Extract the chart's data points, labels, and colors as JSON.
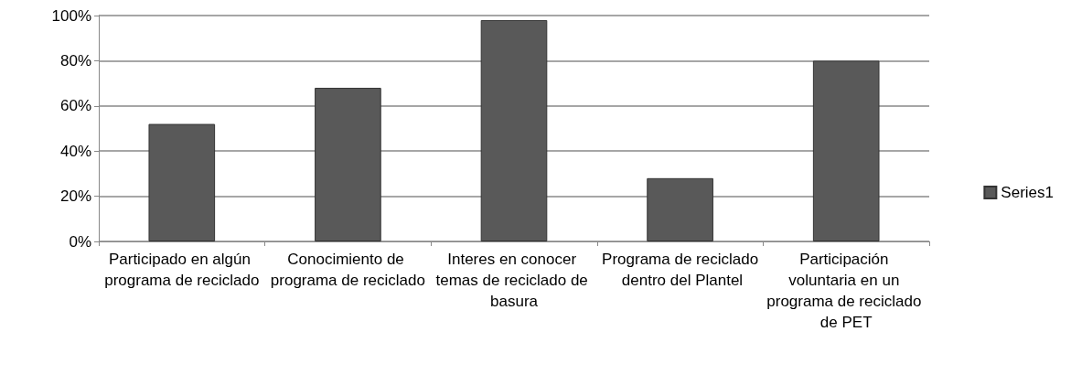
{
  "chart_data": {
    "type": "bar",
    "categories": [
      "Participado en algún programa de reciclado",
      "Conocimiento de programa de reciclado",
      "Interes en conocer temas de reciclado de basura",
      "Programa de reciclado dentro del Plantel",
      "Participación voluntaria en un programa de reciclado de PET"
    ],
    "series": [
      {
        "name": "Series1",
        "color": "#595959",
        "values": [
          52,
          68,
          98,
          28,
          80
        ]
      }
    ],
    "ylim": [
      0,
      100
    ],
    "yticks": [
      {
        "value": 0,
        "label": "0%"
      },
      {
        "value": 20,
        "label": "20%"
      },
      {
        "value": 40,
        "label": "40%"
      },
      {
        "value": 60,
        "label": "60%"
      },
      {
        "value": 80,
        "label": "80%"
      },
      {
        "value": 100,
        "label": "100%"
      }
    ],
    "grid": "y",
    "legend": "right"
  }
}
